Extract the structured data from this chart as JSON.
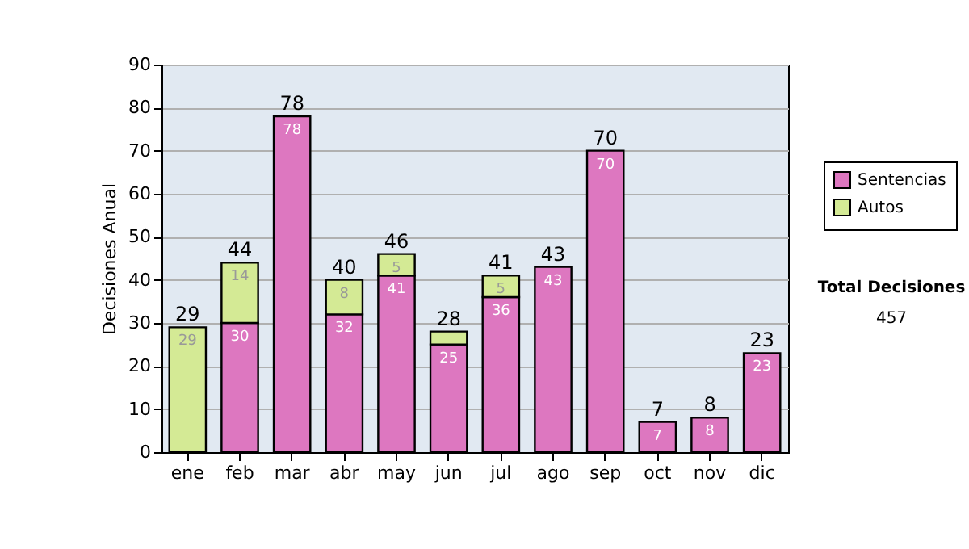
{
  "chart_data": {
    "type": "bar",
    "stacked": true,
    "ylabel": "Decisiones Anual",
    "categories": [
      "ene",
      "feb",
      "mar",
      "abr",
      "may",
      "jun",
      "jul",
      "ago",
      "sep",
      "oct",
      "nov",
      "dic"
    ],
    "series": [
      {
        "name": "Sentencias",
        "color": "#dd77c0",
        "values": [
          null,
          30,
          78,
          32,
          41,
          25,
          36,
          43,
          70,
          7,
          8,
          23
        ],
        "value_labels": [
          null,
          "30",
          "78",
          "32",
          "41",
          "25",
          "36",
          "43",
          "70",
          "7",
          "8",
          "23"
        ]
      },
      {
        "name": "Autos",
        "color": "#d4ea95",
        "values": [
          29,
          14,
          null,
          8,
          5,
          3,
          5,
          null,
          null,
          null,
          null,
          null
        ],
        "value_labels": [
          "29",
          "14",
          null,
          "8",
          "5",
          null,
          "5",
          null,
          null,
          null,
          null,
          null
        ]
      }
    ],
    "totals": [
      "29",
      "44",
      "78",
      "40",
      "46",
      "28",
      "41",
      "43",
      "70",
      "7",
      "8",
      "23"
    ],
    "ylim": [
      0,
      90
    ],
    "yticks": [
      0,
      10,
      20,
      30,
      40,
      50,
      60,
      70,
      80,
      90
    ],
    "grid": "y",
    "legend": "right",
    "annotations": [
      "Total Decisiones",
      "457"
    ]
  }
}
